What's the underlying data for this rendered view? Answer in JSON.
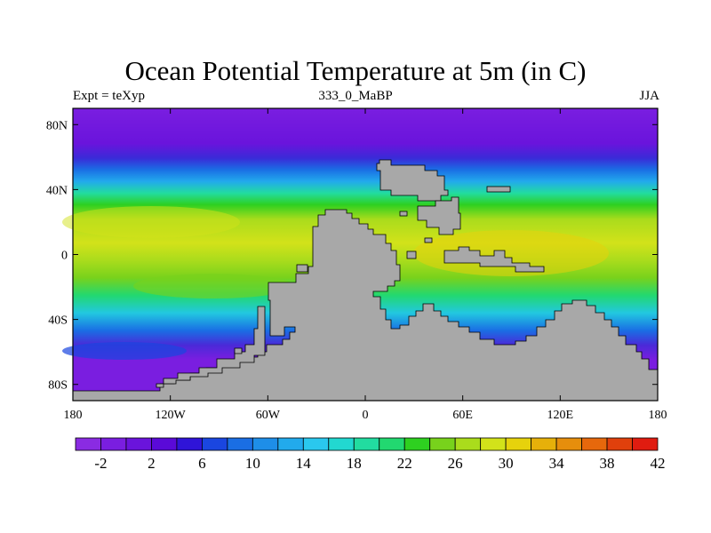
{
  "title": "Ocean Potential Temperature at 5m (in C)",
  "subtitle_left": "Expt = teXyp",
  "subtitle_center": "333_0_MaBP",
  "subtitle_right": "JJA",
  "colors": {
    "land": "#a8a8a8",
    "frame": "#000000"
  },
  "map": {
    "lon_range": [
      -180,
      180
    ],
    "lat_range": [
      -90,
      90
    ],
    "x_ticks": [
      {
        "lon": -180,
        "label": "180"
      },
      {
        "lon": -120,
        "label": "120W"
      },
      {
        "lon": -60,
        "label": "60W"
      },
      {
        "lon": 0,
        "label": "0"
      },
      {
        "lon": 60,
        "label": "60E"
      },
      {
        "lon": 120,
        "label": "120E"
      },
      {
        "lon": 180,
        "label": "180"
      }
    ],
    "y_ticks": [
      {
        "lat": 80,
        "label": "80N"
      },
      {
        "lat": 40,
        "label": "40N"
      },
      {
        "lat": 0,
        "label": "0"
      },
      {
        "lat": -40,
        "label": "40S"
      },
      {
        "lat": -80,
        "label": "80S"
      }
    ]
  },
  "colorbar": {
    "colors": [
      "#8a2be2",
      "#7a1ee0",
      "#6a14dc",
      "#5a0ad8",
      "#2f14d8",
      "#1a46e0",
      "#1a6ee4",
      "#1e8ee8",
      "#22aaec",
      "#2ac8ee",
      "#22d8d0",
      "#22dca0",
      "#22d870",
      "#2ed020",
      "#78d21c",
      "#aadc1c",
      "#d2e21a",
      "#e6d20c",
      "#e6b00a",
      "#e68e0c",
      "#e6680c",
      "#e0400c",
      "#e01c10"
    ],
    "labels": [
      {
        "index": 1,
        "text": "-2"
      },
      {
        "index": 3,
        "text": "2"
      },
      {
        "index": 5,
        "text": "6"
      },
      {
        "index": 7,
        "text": "10"
      },
      {
        "index": 9,
        "text": "14"
      },
      {
        "index": 11,
        "text": "18"
      },
      {
        "index": 13,
        "text": "22"
      },
      {
        "index": 15,
        "text": "26"
      },
      {
        "index": 17,
        "text": "30"
      },
      {
        "index": 19,
        "text": "34"
      },
      {
        "index": 21,
        "text": "38"
      },
      {
        "index": 23,
        "text": "42"
      }
    ]
  }
}
